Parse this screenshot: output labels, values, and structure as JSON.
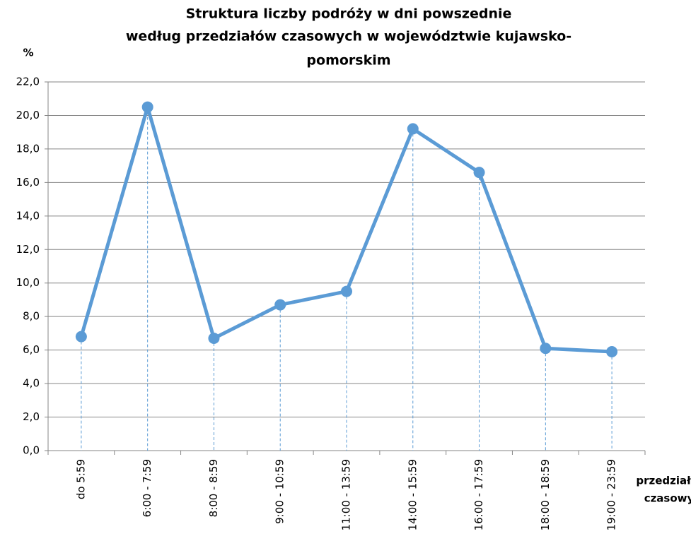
{
  "chart_data": {
    "type": "line",
    "title": [
      "Struktura liczby podróży w dni powszednie",
      "według przedziałów czasowych w województwie kujawsko-",
      "pomorskim"
    ],
    "y_label": "%",
    "x_label": [
      "przedział",
      "czasowy"
    ],
    "categories": [
      "do 5:59",
      "6:00 - 7:59",
      "8:00 - 8:59",
      "9:00 - 10:59",
      "11:00 - 13:59",
      "14:00 - 15:59",
      "16:00 - 17:59",
      "18:00 - 18:59",
      "19:00 - 23:59"
    ],
    "values": [
      6.8,
      20.5,
      6.7,
      8.7,
      9.5,
      19.2,
      16.6,
      6.1,
      5.9
    ],
    "color": "#5b9bd5",
    "ylim": [
      0,
      22
    ],
    "yticks": [
      {
        "value": 0,
        "label": "0,0"
      },
      {
        "value": 2,
        "label": "2,0"
      },
      {
        "value": 4,
        "label": "4,0"
      },
      {
        "value": 6,
        "label": "6,0"
      },
      {
        "value": 8,
        "label": "8,0"
      },
      {
        "value": 10,
        "label": "10,0"
      },
      {
        "value": 12,
        "label": "12,0"
      },
      {
        "value": 14,
        "label": "14,0"
      },
      {
        "value": 16,
        "label": "16,0"
      },
      {
        "value": 18,
        "label": "18,0"
      },
      {
        "value": 20,
        "label": "20,0"
      },
      {
        "value": 22,
        "label": "22,0"
      }
    ],
    "grid": true,
    "drop_lines": true
  }
}
